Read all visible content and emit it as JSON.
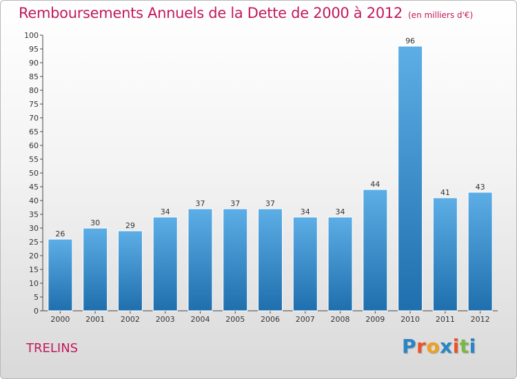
{
  "title": "Remboursements Annuels de la Dette de 2000 à 2012",
  "unit": "(en milliers d'€)",
  "town": "TRELINS",
  "logo": {
    "letters": [
      "P",
      "r",
      "o",
      "x",
      "i",
      "t",
      "i"
    ],
    "colors": [
      "#2a84c5",
      "#e8552a",
      "#f0a020",
      "#2a84c5",
      "#e8552a",
      "#7ab648",
      "#2a84c5"
    ]
  },
  "colors": {
    "title": "#c2185b",
    "bar_top": "#5dade6",
    "bar_bottom": "#1f6fae"
  },
  "chart_data": {
    "type": "bar",
    "categories": [
      "2000",
      "2001",
      "2002",
      "2003",
      "2004",
      "2005",
      "2006",
      "2007",
      "2008",
      "2009",
      "2010",
      "2011",
      "2012"
    ],
    "values": [
      26,
      30,
      29,
      34,
      37,
      37,
      37,
      34,
      34,
      44,
      96,
      41,
      43
    ],
    "ylim": [
      0,
      100
    ],
    "yticks": [
      0,
      5,
      10,
      15,
      20,
      25,
      30,
      35,
      40,
      45,
      50,
      55,
      60,
      65,
      70,
      75,
      80,
      85,
      90,
      95,
      100
    ],
    "grid": false,
    "legend": "none"
  }
}
